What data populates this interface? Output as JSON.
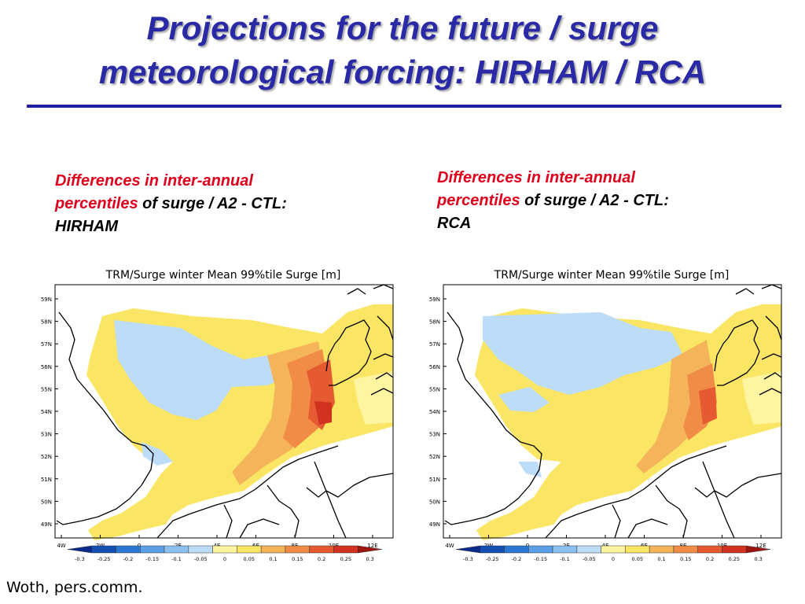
{
  "slide": {
    "title_line1": "Projections for the future / surge",
    "title_line2": "meteorological forcing: HIRHAM / RCA",
    "credit": "Woth, pers.comm."
  },
  "panels": [
    {
      "caption_red1": "Differences in inter-annual",
      "caption_red2": "percentiles",
      "caption_black2": " of  surge / A2 - CTL:",
      "caption_black3": "HIRHAM",
      "map_title": "TRM/Surge winter Mean 99%tile Surge [m]",
      "lat_labels": [
        "59N",
        "58N",
        "57N",
        "56N",
        "55N",
        "54N",
        "53N",
        "52N",
        "51N",
        "50N",
        "49N"
      ],
      "lon_labels": [
        "4W",
        "2W",
        "0",
        "2E",
        "4E",
        "6E",
        "8E",
        "10E",
        "12E"
      ],
      "colorbar_labels": [
        "-0.3",
        "-0.25",
        "-0.2",
        "-0.15",
        "-0.1",
        "-0.05",
        "0",
        "0.05",
        "0.1",
        "0.15",
        "0.2",
        "0.25",
        "0.3"
      ]
    },
    {
      "caption_red1": "Differences in inter-annual",
      "caption_red2": "percentiles",
      "caption_black2": " of  surge / A2 - CTL:",
      "caption_black3": "RCA",
      "map_title": "TRM/Surge winter Mean 99%tile Surge [m]",
      "lat_labels": [
        "59N",
        "58N",
        "57N",
        "56N",
        "55N",
        "54N",
        "53N",
        "52N",
        "51N",
        "50N",
        "49N"
      ],
      "lon_labels": [
        "4W",
        "2W",
        "0",
        "2E",
        "4E",
        "6E",
        "8E",
        "10E",
        "12E"
      ],
      "colorbar_labels": [
        "-0.3",
        "-0.25",
        "-0.2",
        "-0.15",
        "-0.1",
        "-0.05",
        "0",
        "0.05",
        "0.1",
        "0.15",
        "0.2",
        "0.25",
        "0.3"
      ]
    }
  ],
  "colorbar_colors": [
    "#0a2a8c",
    "#1450b4",
    "#2a78d2",
    "#5aa0e6",
    "#8cc0f0",
    "#bcdcf8",
    "#fff5a0",
    "#fae664",
    "#f5b45a",
    "#f08c46",
    "#e65a32",
    "#d23220",
    "#a01410"
  ]
}
